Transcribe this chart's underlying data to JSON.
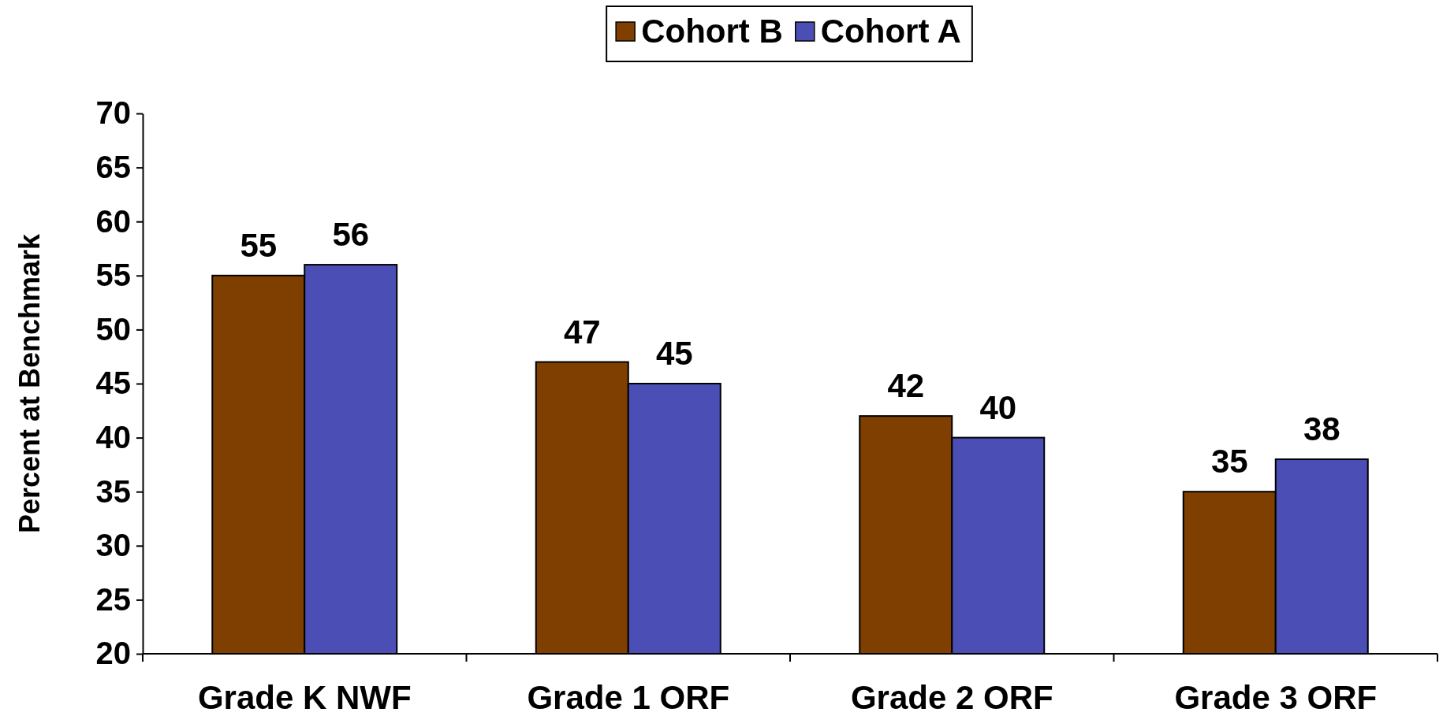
{
  "chart_data": {
    "type": "bar",
    "ylabel": "Percent at Benchmark",
    "categories": [
      "Grade K NWF",
      "Grade 1 ORF",
      "Grade 2 ORF",
      "Grade 3 ORF"
    ],
    "series": [
      {
        "name": "Cohort B",
        "color": "#7f3f00",
        "values": [
          55,
          47,
          42,
          35
        ]
      },
      {
        "name": "Cohort A",
        "color": "#4b4fb5",
        "values": [
          56,
          45,
          40,
          38
        ]
      }
    ],
    "ylim": [
      20,
      70
    ],
    "yticks": [
      20,
      25,
      30,
      35,
      40,
      45,
      50,
      55,
      60,
      65,
      70
    ],
    "grid": false,
    "legend": "top",
    "data_labels": true
  }
}
